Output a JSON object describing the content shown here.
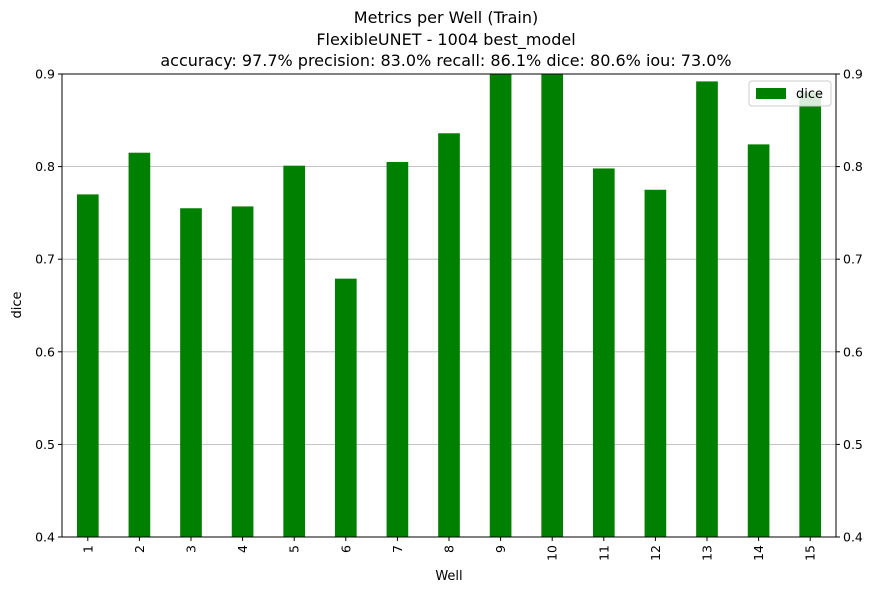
{
  "chart_data": {
    "type": "bar",
    "title_lines": [
      "Metrics per Well (Train)",
      "FlexibleUNET - 1004 best_model",
      "accuracy: 97.7% precision: 83.0% recall: 86.1% dice: 80.6% iou: 73.0%"
    ],
    "xlabel": "Well",
    "ylabel": "dice",
    "ylim": [
      0.4,
      0.9
    ],
    "yticks": [
      0.4,
      0.5,
      0.6,
      0.7,
      0.8,
      0.9
    ],
    "ytick_labels": [
      "0.4",
      "0.5",
      "0.6",
      "0.7",
      "0.8",
      "0.9"
    ],
    "categories": [
      "1",
      "2",
      "3",
      "4",
      "5",
      "6",
      "7",
      "8",
      "9",
      "10",
      "11",
      "12",
      "13",
      "14",
      "15"
    ],
    "series": [
      {
        "name": "dice",
        "color": "#008000",
        "values": [
          0.77,
          0.815,
          0.755,
          0.757,
          0.801,
          0.679,
          0.805,
          0.836,
          0.9,
          0.9,
          0.798,
          0.775,
          0.892,
          0.824,
          0.88
        ]
      }
    ],
    "grid": "horizontal",
    "legend_position": "top-right",
    "secondary_y_axis": true
  }
}
